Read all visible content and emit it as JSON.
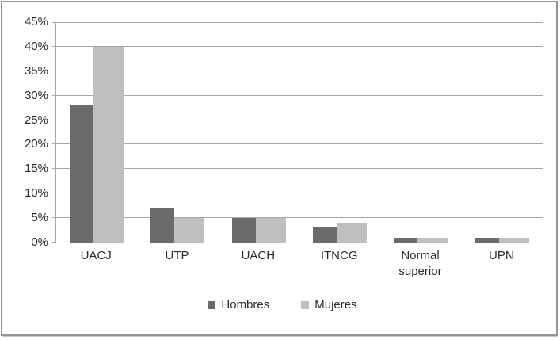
{
  "chart_data": {
    "type": "bar",
    "title": "",
    "xlabel": "",
    "ylabel": "",
    "categories": [
      "UACJ",
      "UTP",
      "UACH",
      "ITNCG",
      "Normal superior",
      "UPN"
    ],
    "series": [
      {
        "name": "Hombres",
        "color": "#6b6b6b",
        "values": [
          28,
          7,
          5,
          3,
          1,
          1
        ]
      },
      {
        "name": "Mujeres",
        "color": "#bfbfbf",
        "values": [
          40,
          5,
          5,
          4,
          1,
          1
        ]
      }
    ],
    "ylim": [
      0,
      45
    ],
    "ytick_step": 5,
    "yticks": [
      {
        "value": 0,
        "label": "0%"
      },
      {
        "value": 5,
        "label": "5%"
      },
      {
        "value": 10,
        "label": "10%"
      },
      {
        "value": 15,
        "label": "15%"
      },
      {
        "value": 20,
        "label": "20%"
      },
      {
        "value": 25,
        "label": "25%"
      },
      {
        "value": 30,
        "label": "30%"
      },
      {
        "value": 35,
        "label": "35%"
      },
      {
        "value": 40,
        "label": "40%"
      },
      {
        "value": 45,
        "label": "45%"
      }
    ],
    "grid": true,
    "legend_position": "bottom",
    "colors": {
      "gridline": "#a6a6a6",
      "axis": "#a6a6a6",
      "text": "#2b2b2b",
      "frame_border": "#959595",
      "background": "#ffffff"
    }
  }
}
